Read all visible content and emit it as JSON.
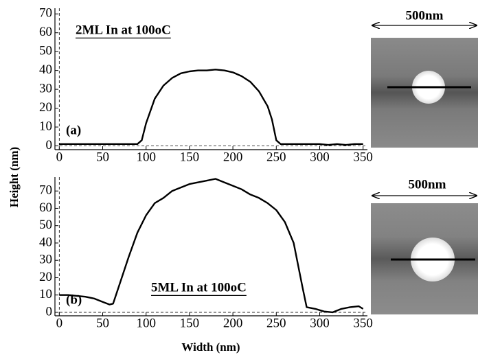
{
  "chart_data": [
    {
      "type": "line",
      "color": "#000000",
      "x": [
        0,
        20,
        40,
        60,
        80,
        90,
        95,
        100,
        110,
        120,
        130,
        140,
        150,
        160,
        170,
        180,
        190,
        200,
        210,
        220,
        230,
        240,
        245,
        250,
        255,
        270,
        290,
        300,
        310,
        320,
        330,
        340,
        350
      ],
      "values": [
        1,
        1,
        1,
        1,
        1,
        1,
        3,
        12,
        25,
        32,
        36,
        38.5,
        39.5,
        40,
        40,
        40.5,
        40,
        39,
        37,
        34,
        29,
        21,
        14,
        3,
        1,
        1,
        1,
        1,
        0.5,
        1,
        0.5,
        1,
        1
      ],
      "xlim": [
        -5,
        355
      ],
      "ylim": [
        -2,
        73
      ],
      "xticks": [
        0,
        50,
        100,
        150,
        200,
        250,
        300,
        350
      ],
      "yticks": [
        0,
        10,
        20,
        30,
        40,
        50,
        60,
        70
      ],
      "panel_label": "(a)",
      "title": "2ML In at 100oC",
      "scale_label": "500nm",
      "ylabel": "Height (nm)"
    },
    {
      "type": "line",
      "color": "#000000",
      "x": [
        0,
        10,
        20,
        30,
        40,
        50,
        58,
        62,
        70,
        80,
        90,
        100,
        110,
        120,
        130,
        140,
        150,
        160,
        170,
        180,
        190,
        200,
        210,
        220,
        230,
        240,
        250,
        260,
        270,
        280,
        285,
        295,
        305,
        315,
        325,
        335,
        345,
        350
      ],
      "values": [
        10,
        10,
        9.5,
        9,
        8,
        6,
        4.5,
        5,
        17,
        32,
        46,
        56,
        63,
        66,
        70,
        72,
        74,
        75,
        76,
        77,
        75,
        73,
        71,
        68,
        66,
        63,
        59,
        52,
        40,
        15,
        3,
        2,
        0.5,
        0,
        2,
        3,
        3.5,
        2
      ],
      "xlim": [
        -5,
        355
      ],
      "ylim": [
        -2,
        78
      ],
      "xticks": [
        0,
        50,
        100,
        150,
        200,
        250,
        300,
        350
      ],
      "yticks": [
        0,
        10,
        20,
        30,
        40,
        50,
        60,
        70
      ],
      "panel_label": "(b)",
      "title": "5ML In at 100oC",
      "scale_label": "500nm",
      "xlabel": "Width (nm)"
    }
  ]
}
